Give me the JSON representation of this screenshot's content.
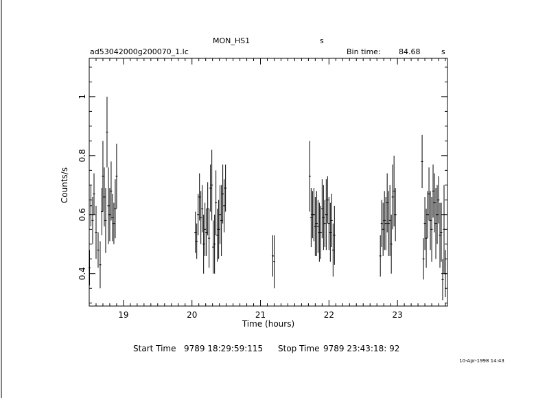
{
  "header": {
    "title": "MON_HS1",
    "title_unit": "s",
    "filename": "ad53042000g200070_1.lc",
    "bin_label": "Bin time:",
    "bin_value": "84.68",
    "bin_unit": "s"
  },
  "footer": {
    "start_label": "Start Time",
    "start_value": "9789 18:29:59:115",
    "stop_label": "Stop Time",
    "stop_value": "9789 23:43:18: 92",
    "timestamp": "10-Apr-1998 14:43"
  },
  "chart_data": {
    "type": "scatter",
    "xlabel": "Time (hours)",
    "ylabel": "Counts/s",
    "xlim": [
      18.5,
      23.73
    ],
    "ylim": [
      0.29,
      1.13
    ],
    "xticks": [
      19,
      20,
      21,
      22,
      23
    ],
    "yticks": [
      0.4,
      0.6,
      0.8,
      1
    ],
    "xtick_labels": [
      "19",
      "20",
      "21",
      "22",
      "23"
    ],
    "ytick_labels": [
      "0.4",
      "0.6",
      "0.8",
      "1"
    ],
    "grid": false,
    "series": [
      {
        "x": [
          18.505,
          18.525,
          18.55,
          18.57,
          18.6,
          18.63,
          18.66,
          18.685,
          18.7,
          18.72,
          18.74,
          18.76,
          18.78,
          18.8,
          18.82,
          18.84,
          18.86,
          18.88,
          18.9,
          20.05,
          20.07,
          20.09,
          20.11,
          20.13,
          20.15,
          20.17,
          20.19,
          20.21,
          20.23,
          20.25,
          20.27,
          20.29,
          20.31,
          20.33,
          20.35,
          20.37,
          20.39,
          20.41,
          20.43,
          20.45,
          20.47,
          20.49,
          21.18,
          21.2,
          21.72,
          21.74,
          21.76,
          21.78,
          21.8,
          21.82,
          21.84,
          21.86,
          21.88,
          21.9,
          21.92,
          21.94,
          21.96,
          21.98,
          22.0,
          22.02,
          22.04,
          22.06,
          22.08,
          22.75,
          22.77,
          22.79,
          22.81,
          22.83,
          22.85,
          22.87,
          22.89,
          22.91,
          22.93,
          22.95,
          22.97,
          23.36,
          23.38,
          23.4,
          23.42,
          23.44,
          23.46,
          23.48,
          23.5,
          23.52,
          23.54,
          23.56,
          23.58,
          23.6,
          23.62,
          23.64,
          23.66,
          23.68,
          23.7
        ],
        "y": [
          0.42,
          0.63,
          0.58,
          0.67,
          0.54,
          0.48,
          0.43,
          0.61,
          0.73,
          0.66,
          0.58,
          0.88,
          0.63,
          0.6,
          0.68,
          0.59,
          0.57,
          0.62,
          0.73,
          0.54,
          0.51,
          0.6,
          0.66,
          0.59,
          0.62,
          0.5,
          0.55,
          0.54,
          0.62,
          0.52,
          0.69,
          0.7,
          0.49,
          0.5,
          0.64,
          0.53,
          0.55,
          0.6,
          0.58,
          0.67,
          0.63,
          0.69,
          0.46,
          0.44,
          0.73,
          0.59,
          0.6,
          0.6,
          0.56,
          0.57,
          0.56,
          0.54,
          0.54,
          0.62,
          0.59,
          0.57,
          0.6,
          0.65,
          0.57,
          0.54,
          0.58,
          0.48,
          0.53,
          0.46,
          0.57,
          0.55,
          0.58,
          0.57,
          0.64,
          0.57,
          0.58,
          0.5,
          0.66,
          0.68,
          0.6,
          0.78,
          0.45,
          0.57,
          0.52,
          0.6,
          0.67,
          0.58,
          0.55,
          0.68,
          0.64,
          0.57,
          0.6,
          0.65,
          0.53,
          0.54,
          0.38,
          0.55,
          0.4
        ],
        "yerr": [
          0.06,
          0.07,
          0.08,
          0.07,
          0.09,
          0.06,
          0.08,
          0.08,
          0.12,
          0.1,
          0.11,
          0.12,
          0.13,
          0.09,
          0.1,
          0.08,
          0.07,
          0.1,
          0.11,
          0.07,
          0.06,
          0.07,
          0.08,
          0.09,
          0.08,
          0.1,
          0.09,
          0.08,
          0.09,
          0.1,
          0.08,
          0.12,
          0.09,
          0.1,
          0.11,
          0.09,
          0.1,
          0.1,
          0.12,
          0.1,
          0.09,
          0.08,
          0.07,
          0.09,
          0.12,
          0.1,
          0.08,
          0.09,
          0.1,
          0.11,
          0.09,
          0.1,
          0.09,
          0.1,
          0.11,
          0.08,
          0.12,
          0.08,
          0.09,
          0.1,
          0.09,
          0.09,
          0.1,
          0.07,
          0.08,
          0.09,
          0.1,
          0.09,
          0.1,
          0.11,
          0.12,
          0.1,
          0.11,
          0.12,
          0.09,
          0.09,
          0.07,
          0.09,
          0.1,
          0.08,
          0.09,
          0.1,
          0.11,
          0.09,
          0.1,
          0.12,
          0.1,
          0.08,
          0.11,
          0.1,
          0.07,
          0.15,
          0.08
        ]
      }
    ]
  }
}
